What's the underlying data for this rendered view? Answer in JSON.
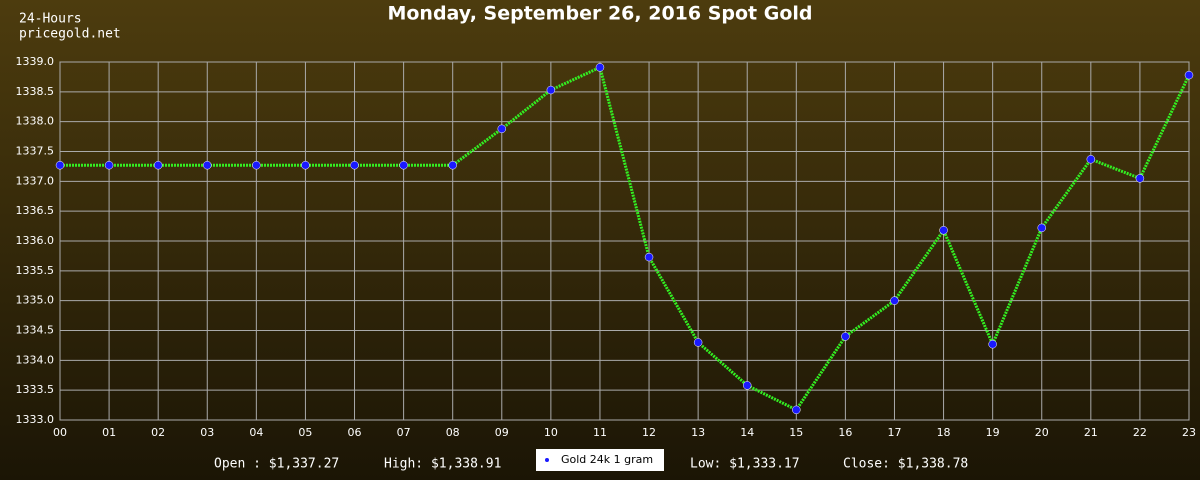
{
  "chart_data": {
    "type": "line",
    "title": "Monday, September 26, 2016 Spot Gold",
    "subtitle": [
      "24-Hours",
      "pricegold.net"
    ],
    "categories": [
      "00",
      "01",
      "02",
      "03",
      "04",
      "05",
      "06",
      "07",
      "08",
      "09",
      "10",
      "11",
      "12",
      "13",
      "14",
      "15",
      "16",
      "17",
      "18",
      "19",
      "20",
      "21",
      "22",
      "23"
    ],
    "series": [
      {
        "name": "Gold 24k 1 gram",
        "color": "#33ee22",
        "marker_color": "#1a1aff",
        "values": [
          1337.27,
          1337.27,
          1337.27,
          1337.27,
          1337.27,
          1337.27,
          1337.27,
          1337.27,
          1337.27,
          1337.88,
          1338.53,
          1338.91,
          1335.73,
          1334.3,
          1333.58,
          1333.17,
          1334.4,
          1335.0,
          1336.18,
          1334.27,
          1336.22,
          1337.37,
          1337.05,
          1338.78
        ]
      }
    ],
    "ylim": [
      1333,
      1339
    ],
    "yticks": [
      {
        "value": 1333,
        "label": "1333.0"
      },
      {
        "value": 1333.5,
        "label": "1333.5"
      },
      {
        "value": 1334,
        "label": "1334.0"
      },
      {
        "value": 1334.5,
        "label": "1334.5"
      },
      {
        "value": 1335,
        "label": "1335.0"
      },
      {
        "value": 1335.5,
        "label": "1335.5"
      },
      {
        "value": 1336,
        "label": "1336.0"
      },
      {
        "value": 1336.5,
        "label": "1336.5"
      },
      {
        "value": 1337,
        "label": "1337.0"
      },
      {
        "value": 1337.5,
        "label": "1337.5"
      },
      {
        "value": 1338,
        "label": "1338.0"
      },
      {
        "value": 1338.5,
        "label": "1338.5"
      },
      {
        "value": 1339,
        "label": "1339.0"
      }
    ],
    "grid": true,
    "annotations": [
      "Open : $1,337.27",
      "High: $1,338.91",
      "Low: $1,333.17",
      "Close: $1,338.78"
    ]
  }
}
